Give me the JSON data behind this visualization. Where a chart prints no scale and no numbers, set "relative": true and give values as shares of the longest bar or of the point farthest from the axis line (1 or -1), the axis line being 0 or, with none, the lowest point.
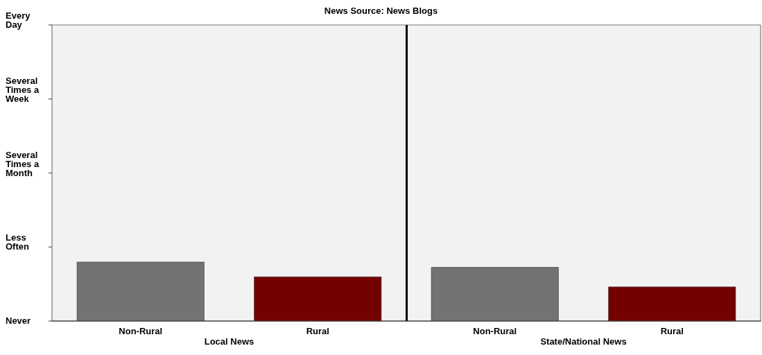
{
  "chart_data": {
    "type": "bar",
    "title": "News Source: News Blogs",
    "categories": [
      "Non-Rural",
      "Rural",
      "Non-Rural",
      "Rural"
    ],
    "values": [
      1,
      0.75,
      0.91,
      0.58
    ],
    "colors": [
      "#737373",
      "#750000",
      "#737373",
      "#750000"
    ],
    "relative": true,
    "annotations": [
      "Local News",
      "State/National News",
      "Never",
      "Less Often",
      "Several Times a Month",
      "Several Times a Week",
      "Every Day"
    ]
  }
}
